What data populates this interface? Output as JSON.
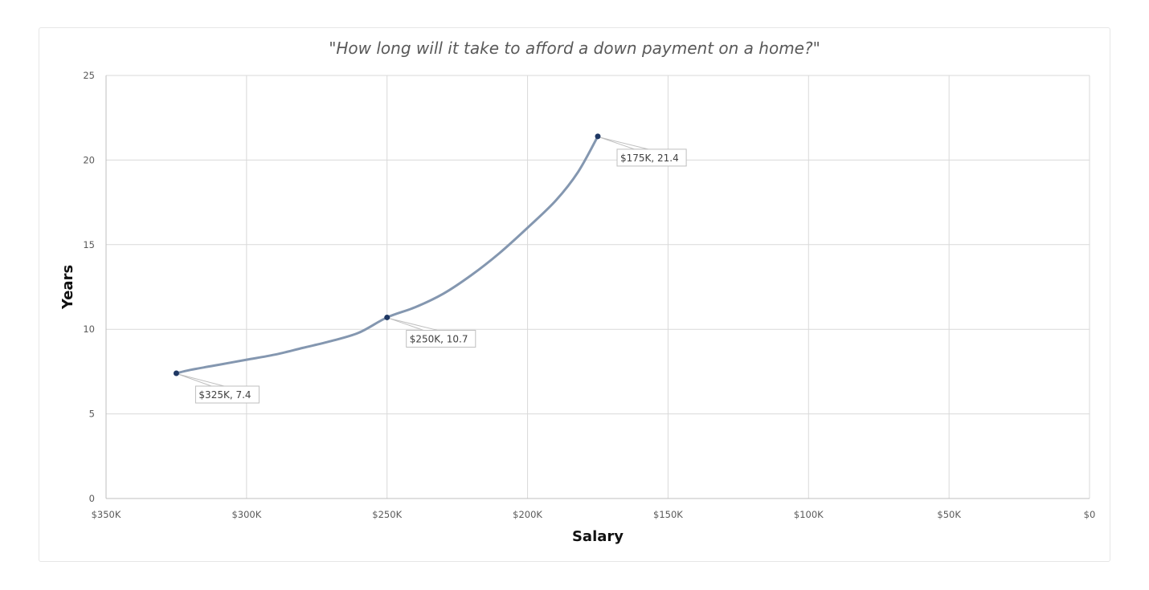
{
  "chart_data": {
    "type": "line",
    "title": "\"How long will it take to afford a down payment on a home?\"",
    "xlabel": "Salary",
    "ylabel": "Years",
    "xlim": [
      350000,
      0
    ],
    "ylim": [
      0,
      25
    ],
    "x_reversed": true,
    "grid": true,
    "legend": "none",
    "x_ticks": [
      350000,
      300000,
      250000,
      200000,
      150000,
      100000,
      50000,
      0
    ],
    "x_tick_labels": [
      "$350K",
      "$300K",
      "$250K",
      "$200K",
      "$150K",
      "$100K",
      "$50K",
      "$0"
    ],
    "y_ticks": [
      0,
      5,
      10,
      15,
      20,
      25
    ],
    "y_tick_labels": [
      "0",
      "5",
      "10",
      "15",
      "20",
      "25"
    ],
    "series": [
      {
        "x": [
          325000,
          320000,
          310000,
          300000,
          290000,
          280000,
          270000,
          260000,
          250000,
          240000,
          230000,
          220000,
          210000,
          200000,
          190000,
          182000,
          175000
        ],
        "y": [
          7.4,
          7.6,
          7.9,
          8.2,
          8.5,
          8.9,
          9.3,
          9.8,
          10.7,
          11.3,
          12.1,
          13.2,
          14.5,
          16.0,
          17.6,
          19.3,
          21.4
        ]
      }
    ],
    "data_labels": [
      {
        "x": 325000,
        "y": 7.4,
        "text": "$325K, 7.4"
      },
      {
        "x": 250000,
        "y": 10.7,
        "text": "$250K, 10.7"
      },
      {
        "x": 175000,
        "y": 21.4,
        "text": "$175K, 21.4"
      }
    ],
    "colors": {
      "line": "#8497b0",
      "marker": "#1f3864",
      "grid": "#d9d9d9",
      "axis": "#bfbfbf"
    }
  }
}
